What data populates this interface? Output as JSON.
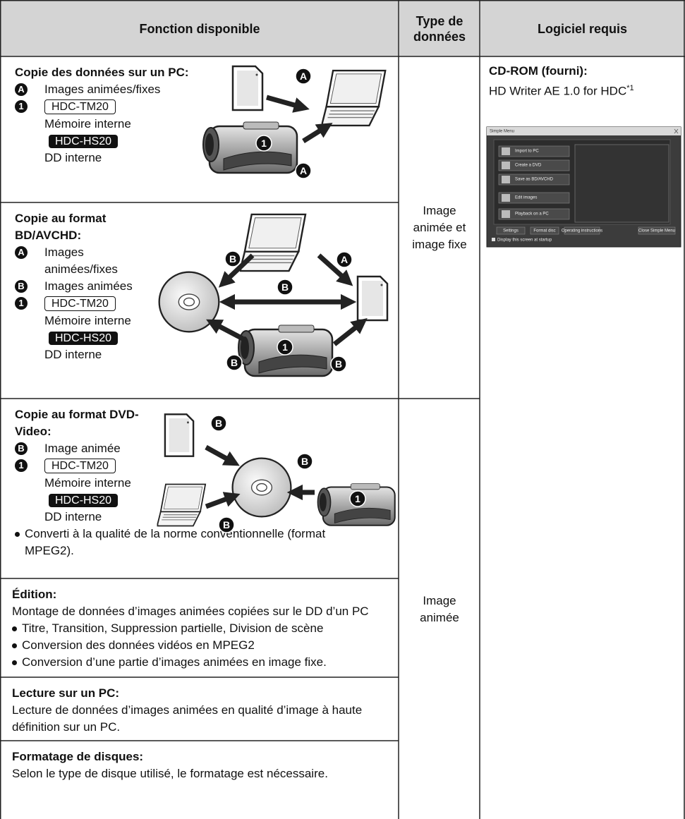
{
  "header": {
    "col1": "Fonction disponible",
    "col2": "Type de données",
    "col3": "Logiciel requis"
  },
  "rows": [
    {
      "title": "Copie des données sur un PC:",
      "items": [
        {
          "marker": "A",
          "text": "Images animées/fixes"
        },
        {
          "marker": "1",
          "model_a": "HDC-TM20",
          "text_a": "Mémoire interne",
          "model_b": "HDC-HS20",
          "text_b": "DD interne"
        }
      ],
      "diagram_labels": [
        "A",
        "1",
        "A"
      ]
    },
    {
      "title": "Copie au format BD/AVCHD:",
      "items": [
        {
          "marker": "A",
          "text": "Images animées/fixes"
        },
        {
          "marker": "B",
          "text": "Images animées"
        },
        {
          "marker": "1",
          "model_a": "HDC-TM20",
          "text_a": "Mémoire interne",
          "model_b": "HDC-HS20",
          "text_b": "DD interne"
        }
      ],
      "diagram_labels": [
        "B",
        "A",
        "B",
        "1",
        "B",
        "B"
      ]
    },
    {
      "title": "Copie au format DVD-Video:",
      "items": [
        {
          "marker": "B",
          "text": "Image animée"
        },
        {
          "marker": "1",
          "model_a": "HDC-TM20",
          "text_a": "Mémoire interne",
          "model_b": "HDC-HS20",
          "text_b": "DD interne"
        }
      ],
      "bullets": [
        "Converti à la qualité de la norme conventionnelle (format MPEG2)."
      ],
      "diagram_labels": [
        "B",
        "B",
        "B",
        "1"
      ]
    },
    {
      "title": "Édition:",
      "text": "Montage de données d’images animées copiées sur le DD d’un PC",
      "bullets": [
        "Titre, Transition, Suppression partielle, Division de scène",
        "Conversion des données vidéos en MPEG2",
        "Conversion d’une partie d’images animées en image fixe."
      ]
    },
    {
      "title": "Lecture sur un PC:",
      "text": "Lecture de données d’images animées en qualité d’image à haute définition sur un PC."
    },
    {
      "title": "Formatage de disques:",
      "text": "Selon le type de disque utilisé, le formatage est nécessaire."
    }
  ],
  "data_types": [
    "Image animée et image fixe",
    "Image animée"
  ],
  "software": {
    "title": "CD-ROM (fourni):",
    "name": "HD Writer AE 1.0 for HDC",
    "footnote": "*1",
    "screenshot": {
      "title": "Simple Menu",
      "buttons": [
        "Import to PC",
        "Create a DVD",
        "Save as BD/AVCHD",
        "Edit images",
        "Playback on a PC"
      ],
      "bottom_buttons": [
        "Settings",
        "Format disc",
        "Operating instructions",
        "Close Simple Menu"
      ],
      "checkbox": "Display this screen at startup"
    }
  }
}
